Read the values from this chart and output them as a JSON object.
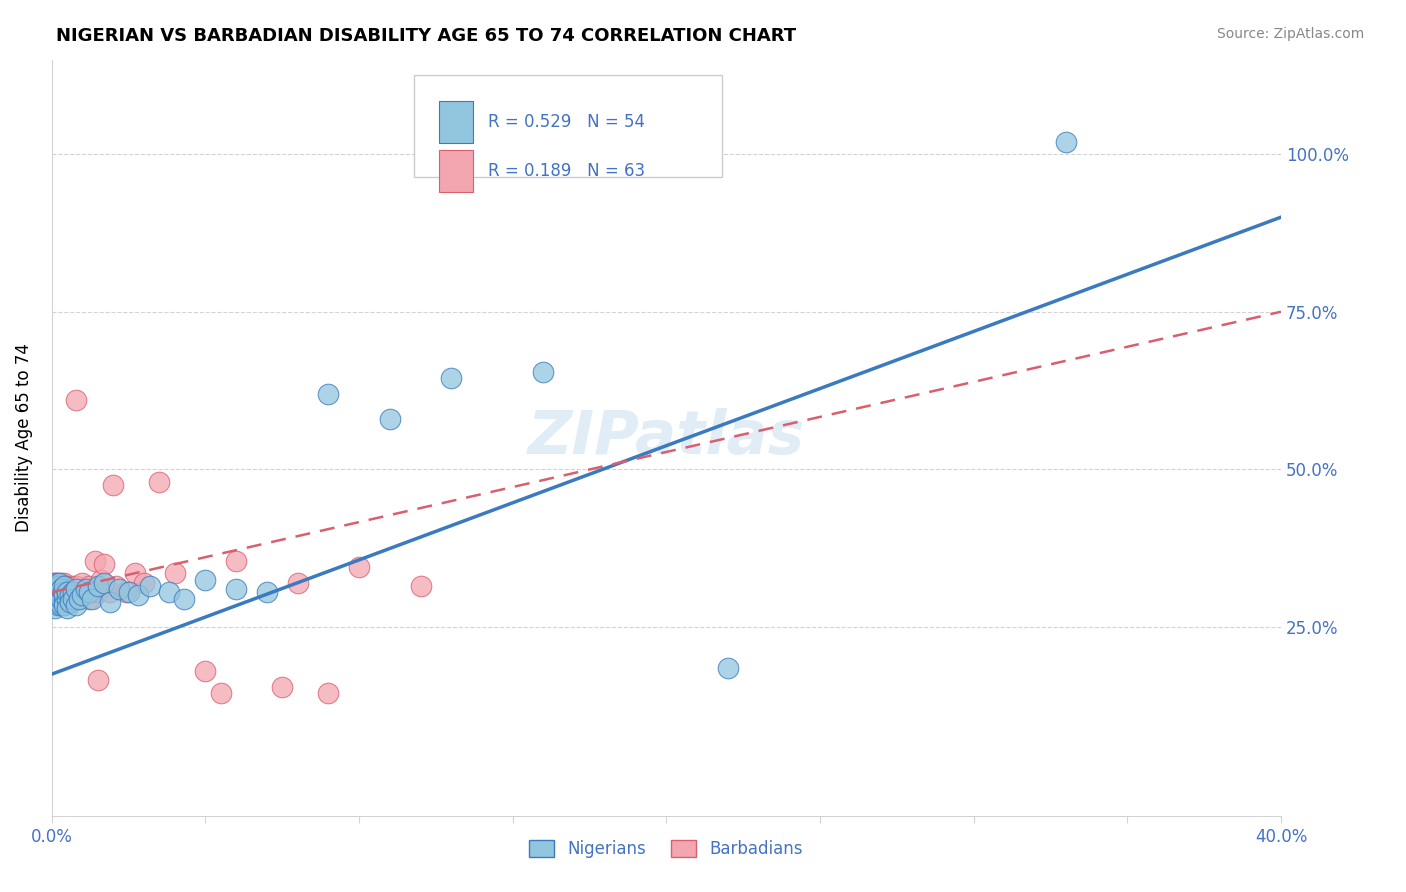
{
  "title": "NIGERIAN VS BARBADIAN DISABILITY AGE 65 TO 74 CORRELATION CHART",
  "source": "Source: ZipAtlas.com",
  "ylabel": "Disability Age 65 to 74",
  "xlim": [
    0.0,
    0.4
  ],
  "ylim": [
    -0.05,
    1.15
  ],
  "nigerian_R": 0.529,
  "nigerian_N": 54,
  "barbadian_R": 0.189,
  "barbadian_N": 63,
  "nigerian_color": "#92c5de",
  "barbadian_color": "#f4a6b0",
  "nigerian_line_color": "#3a7abf",
  "barbadian_line_color": "#d95f6e",
  "watermark": "ZIPatlas",
  "nig_line_x0": 0.0,
  "nig_line_y0": 0.175,
  "nig_line_x1": 0.4,
  "nig_line_y1": 0.9,
  "barb_line_x0": 0.0,
  "barb_line_y0": 0.305,
  "barb_line_x1": 0.4,
  "barb_line_y1": 0.75,
  "nigerian_x": [
    0.0005,
    0.001,
    0.001,
    0.0012,
    0.0015,
    0.0015,
    0.002,
    0.002,
    0.002,
    0.002,
    0.0022,
    0.0025,
    0.003,
    0.003,
    0.003,
    0.003,
    0.003,
    0.0035,
    0.004,
    0.004,
    0.004,
    0.004,
    0.005,
    0.005,
    0.005,
    0.006,
    0.006,
    0.007,
    0.007,
    0.008,
    0.008,
    0.009,
    0.01,
    0.011,
    0.012,
    0.013,
    0.015,
    0.017,
    0.019,
    0.022,
    0.025,
    0.028,
    0.032,
    0.038,
    0.043,
    0.05,
    0.06,
    0.07,
    0.09,
    0.11,
    0.13,
    0.16,
    0.22,
    0.33
  ],
  "nigerian_y": [
    0.295,
    0.28,
    0.31,
    0.29,
    0.32,
    0.3,
    0.295,
    0.285,
    0.305,
    0.315,
    0.29,
    0.32,
    0.295,
    0.3,
    0.285,
    0.31,
    0.295,
    0.305,
    0.29,
    0.3,
    0.285,
    0.315,
    0.295,
    0.305,
    0.28,
    0.3,
    0.29,
    0.305,
    0.295,
    0.31,
    0.285,
    0.295,
    0.3,
    0.31,
    0.305,
    0.295,
    0.315,
    0.32,
    0.29,
    0.31,
    0.305,
    0.3,
    0.315,
    0.305,
    0.295,
    0.325,
    0.31,
    0.305,
    0.62,
    0.58,
    0.645,
    0.655,
    0.185,
    1.02
  ],
  "barbadian_x": [
    0.0003,
    0.0005,
    0.0005,
    0.0008,
    0.001,
    0.001,
    0.001,
    0.001,
    0.0012,
    0.0015,
    0.0015,
    0.002,
    0.002,
    0.002,
    0.002,
    0.002,
    0.0022,
    0.0025,
    0.003,
    0.003,
    0.003,
    0.003,
    0.0035,
    0.004,
    0.004,
    0.004,
    0.005,
    0.005,
    0.005,
    0.006,
    0.006,
    0.007,
    0.007,
    0.008,
    0.008,
    0.009,
    0.01,
    0.011,
    0.012,
    0.012,
    0.013,
    0.014,
    0.015,
    0.016,
    0.017,
    0.019,
    0.021,
    0.024,
    0.027,
    0.03,
    0.035,
    0.04,
    0.06,
    0.08,
    0.1,
    0.12,
    0.055,
    0.075,
    0.09,
    0.02,
    0.008,
    0.015,
    0.05
  ],
  "barbadian_y": [
    0.32,
    0.31,
    0.295,
    0.305,
    0.32,
    0.315,
    0.295,
    0.305,
    0.3,
    0.315,
    0.295,
    0.32,
    0.31,
    0.295,
    0.305,
    0.315,
    0.305,
    0.295,
    0.32,
    0.305,
    0.295,
    0.315,
    0.31,
    0.295,
    0.305,
    0.32,
    0.3,
    0.315,
    0.295,
    0.305,
    0.295,
    0.315,
    0.305,
    0.295,
    0.315,
    0.305,
    0.32,
    0.305,
    0.295,
    0.315,
    0.305,
    0.355,
    0.305,
    0.325,
    0.35,
    0.305,
    0.315,
    0.305,
    0.335,
    0.32,
    0.48,
    0.335,
    0.355,
    0.32,
    0.345,
    0.315,
    0.145,
    0.155,
    0.145,
    0.475,
    0.61,
    0.165,
    0.18
  ]
}
